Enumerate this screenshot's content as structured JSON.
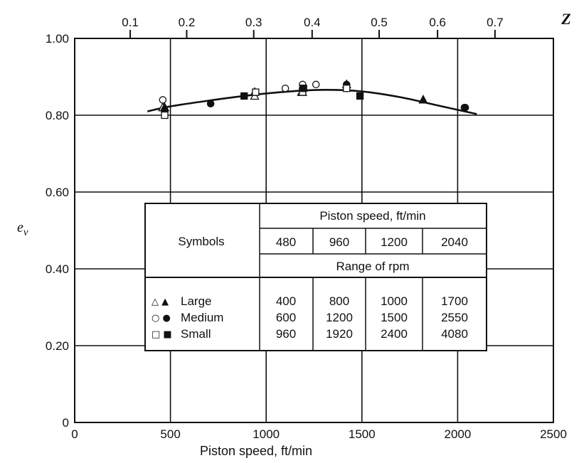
{
  "chart_data": {
    "type": "scatter",
    "xlabel": "Piston speed, ft/min",
    "ylabel": "e_v",
    "xlim": [
      0,
      2500
    ],
    "ylim": [
      0,
      1.0
    ],
    "x_ticks": [
      0,
      500,
      1000,
      1500,
      2000,
      2500
    ],
    "y_ticks": [
      0,
      0.2,
      0.4,
      0.6,
      0.8,
      1.0
    ],
    "x_tick_labels": [
      "0",
      "500",
      "1000",
      "1500",
      "2000",
      "2500"
    ],
    "y_tick_labels": [
      "0",
      "0.20",
      "0.40",
      "0.60",
      "0.80",
      "1.00"
    ],
    "grid": true,
    "top_axis": {
      "label": "Z",
      "ticks": [
        {
          "x": 290,
          "label": "0.1"
        },
        {
          "x": 585,
          "label": "0.2"
        },
        {
          "x": 935,
          "label": "0.3"
        },
        {
          "x": 1240,
          "label": "0.4"
        },
        {
          "x": 1590,
          "label": "0.5"
        },
        {
          "x": 1895,
          "label": "0.6"
        },
        {
          "x": 2195,
          "label": "0.7"
        }
      ]
    },
    "series": [
      {
        "name": "Large",
        "marker": "triangle",
        "filled": false,
        "points": [
          [
            460,
            0.82
          ],
          [
            940,
            0.85
          ],
          [
            1185,
            0.86
          ]
        ]
      },
      {
        "name": "Large",
        "marker": "triangle",
        "filled": true,
        "points": [
          [
            470,
            0.82
          ],
          [
            940,
            0.86
          ],
          [
            1190,
            0.86
          ],
          [
            1420,
            0.88
          ],
          [
            1820,
            0.84
          ]
        ]
      },
      {
        "name": "Medium",
        "marker": "circle",
        "filled": false,
        "points": [
          [
            460,
            0.84
          ],
          [
            1100,
            0.87
          ],
          [
            1190,
            0.88
          ],
          [
            1260,
            0.88
          ],
          [
            1420,
            0.87
          ],
          [
            2035,
            0.82
          ]
        ]
      },
      {
        "name": "Medium",
        "marker": "circle",
        "filled": true,
        "points": [
          [
            470,
            0.81
          ],
          [
            710,
            0.83
          ],
          [
            1190,
            0.87
          ],
          [
            1420,
            0.88
          ],
          [
            2040,
            0.82
          ]
        ]
      },
      {
        "name": "Small",
        "marker": "square",
        "filled": false,
        "points": [
          [
            470,
            0.8
          ],
          [
            945,
            0.86
          ],
          [
            1190,
            0.86
          ],
          [
            1420,
            0.87
          ]
        ]
      },
      {
        "name": "Small",
        "marker": "square",
        "filled": true,
        "points": [
          [
            885,
            0.85
          ],
          [
            1195,
            0.87
          ],
          [
            1490,
            0.85
          ]
        ]
      }
    ],
    "fit_curve": [
      [
        380,
        0.81
      ],
      [
        500,
        0.823
      ],
      [
        700,
        0.838
      ],
      [
        900,
        0.851
      ],
      [
        1100,
        0.861
      ],
      [
        1300,
        0.866
      ],
      [
        1500,
        0.862
      ],
      [
        1700,
        0.847
      ],
      [
        1900,
        0.825
      ],
      [
        2100,
        0.803
      ]
    ]
  },
  "table": {
    "symbols_header": "Symbols",
    "piston_speed_header": "Piston speed, ft/min",
    "speeds": [
      "480",
      "960",
      "1200",
      "2040"
    ],
    "rpm_header": "Range of rpm",
    "rows": [
      {
        "symbols": "△ ▲",
        "label": "Large",
        "values": [
          "400",
          "800",
          "1000",
          "1700"
        ]
      },
      {
        "symbols": "○ ●",
        "label": "Medium",
        "values": [
          "600",
          "1200",
          "1500",
          "2550"
        ]
      },
      {
        "symbols": "□ ■",
        "label": "Small",
        "values": [
          "960",
          "1920",
          "2400",
          "4080"
        ]
      }
    ]
  }
}
